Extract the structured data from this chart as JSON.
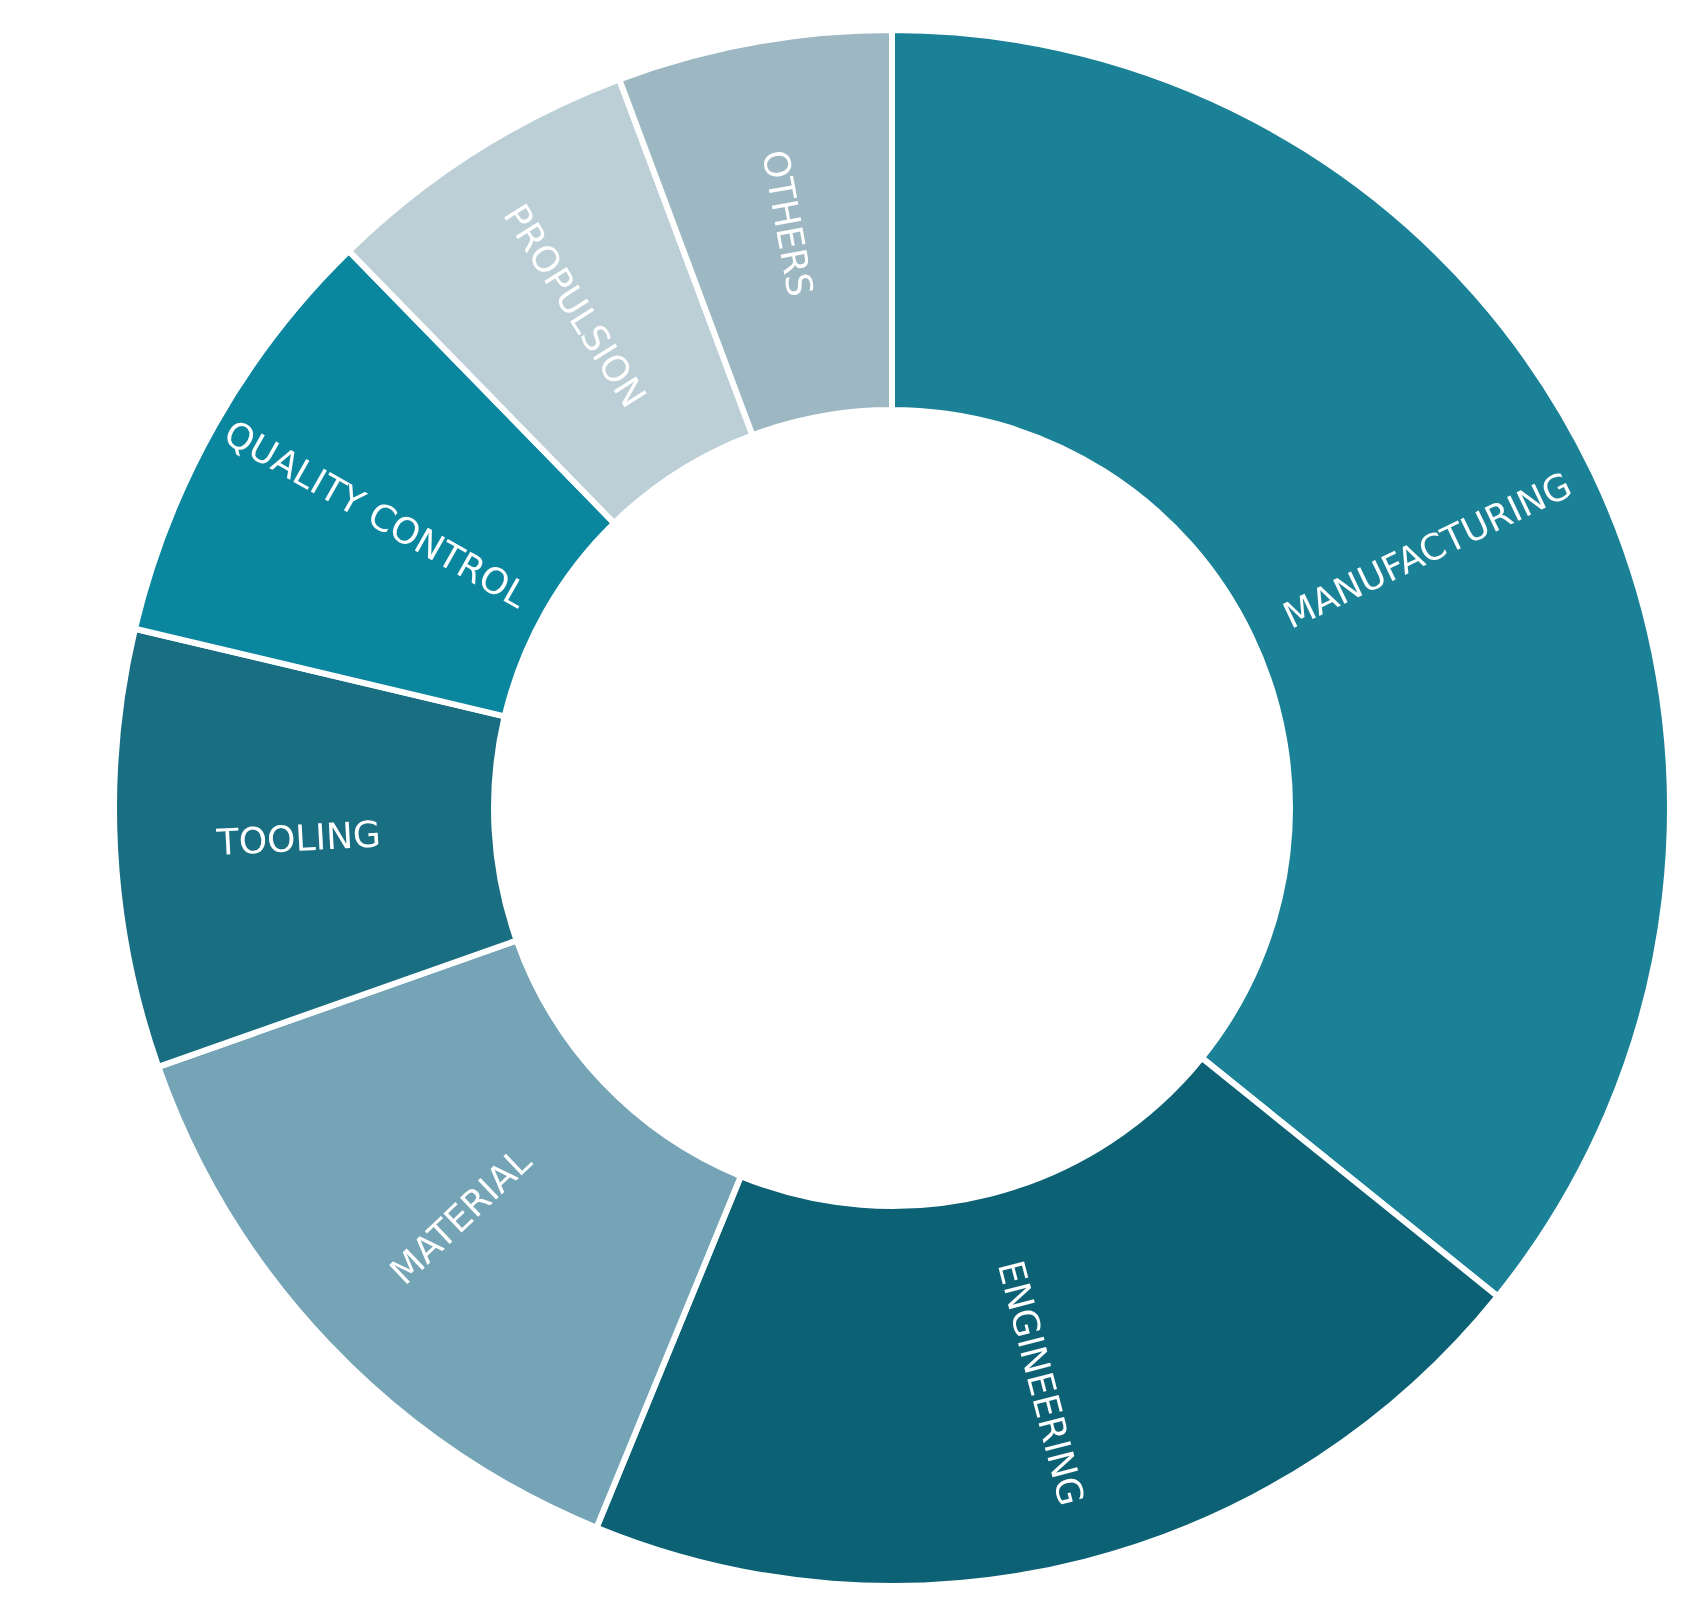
{
  "chart_data": {
    "type": "donut",
    "categories": [
      "MANUFACTURING",
      "ENGINEERING",
      "MATERIAL",
      "TOOLING",
      "QUALITY CONTROL",
      "PROPULSION",
      "OTHERS"
    ],
    "values": [
      35.8,
      20.4,
      13.4,
      9.1,
      9.0,
      6.6,
      5.7
    ],
    "colors": [
      "#1a8196",
      "#0d6174",
      "#74a4b5",
      "#1a6e82",
      "#0a879f",
      "#bccfd7",
      "#9db8c3"
    ],
    "legend": false
  }
}
